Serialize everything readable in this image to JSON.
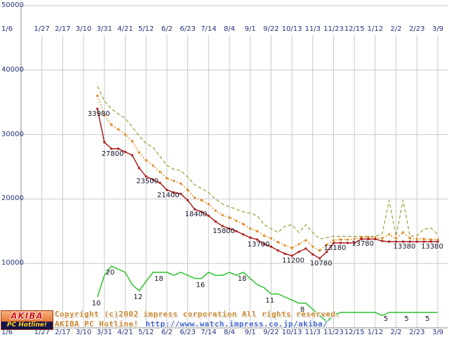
{
  "chart_data": {
    "type": "line",
    "title": "",
    "xlabel": "",
    "ylabel": "",
    "ylim": [
      0,
      50000
    ],
    "grid": true,
    "legend": "none",
    "x_tick_labels": [
      "1/6",
      "1/27",
      "2/17",
      "3/10",
      "3/31",
      "4/21",
      "5/12",
      "6/2",
      "6/23",
      "7/14",
      "8/4",
      "9/1",
      "9/22",
      "10/13",
      "11/3",
      "11/23",
      "12/15",
      "1/12",
      "2/2",
      "2/23",
      "3/9"
    ],
    "x_tick_labels_position": "top-and-bottom",
    "y_tick_labels": [
      "10000",
      "20000",
      "30000",
      "40000",
      "50000"
    ],
    "weeks_per_tick": 3,
    "start_offset_weeks": 11,
    "series": [
      {
        "name": "highest-price",
        "unit": "yen",
        "color": "#9c9c3c",
        "style": "dashed",
        "markers": false,
        "values": [
          37500,
          35200,
          34000,
          33200,
          32500,
          31200,
          29800,
          28600,
          28000,
          26600,
          25200,
          24600,
          24400,
          23400,
          22200,
          21600,
          21000,
          20000,
          19200,
          18800,
          18400,
          18000,
          17800,
          17400,
          16000,
          15400,
          14800,
          15800,
          16000,
          14800,
          16000,
          14800,
          13800,
          14000,
          14200,
          14200,
          14200,
          14200,
          14200,
          14200,
          14200,
          14600,
          19800,
          14200,
          19800,
          14200,
          14300,
          15300,
          15500,
          14500
        ]
      },
      {
        "name": "average-price",
        "unit": "yen",
        "color": "#e08820",
        "style": "dotted",
        "markers": true,
        "values": [
          36000,
          33000,
          31500,
          30800,
          30000,
          29000,
          27200,
          26000,
          25200,
          24200,
          23200,
          22800,
          22400,
          21400,
          20200,
          19800,
          19200,
          18200,
          17500,
          17100,
          16600,
          16100,
          15400,
          15000,
          14300,
          13900,
          13300,
          12800,
          12400,
          13000,
          13600,
          12600,
          12000,
          12900,
          13600,
          13700,
          13700,
          13800,
          14000,
          14100,
          14000,
          13900,
          14500,
          13900,
          14800,
          13900,
          13800,
          13800,
          13700,
          13700
        ]
      },
      {
        "name": "lowest-price",
        "unit": "yen",
        "color": "#aa2020",
        "style": "solid",
        "markers": true,
        "values": [
          33980,
          28800,
          27800,
          27800,
          27300,
          26800,
          24800,
          23500,
          23000,
          22500,
          21400,
          21000,
          20800,
          19800,
          18400,
          18000,
          17400,
          16500,
          15800,
          15400,
          15000,
          14500,
          14000,
          13700,
          13000,
          12600,
          12000,
          11500,
          11200,
          11800,
          12300,
          11400,
          10780,
          11800,
          13180,
          13180,
          13180,
          13180,
          13780,
          13780,
          13780,
          13480,
          13380,
          13380,
          13380,
          13380,
          13380,
          13380,
          13380,
          13380
        ]
      },
      {
        "name": "shops",
        "unit": "count",
        "color": "#2dc22d",
        "style": "solid",
        "markers": false,
        "values": [
          10,
          17,
          20,
          19,
          18,
          14,
          12,
          15,
          18,
          18,
          18,
          17,
          18,
          17,
          16,
          16,
          18,
          17,
          17,
          18,
          17,
          18,
          16,
          14,
          13,
          11,
          11,
          10,
          9,
          8,
          8,
          6,
          4,
          2,
          4,
          5,
          5,
          5,
          5,
          5,
          5,
          4,
          5,
          5,
          5,
          5,
          5,
          5,
          5,
          5
        ]
      }
    ],
    "point_labels": {
      "lowest_price": [
        {
          "week": 0,
          "value": 33980
        },
        {
          "week": 2,
          "value": 27800
        },
        {
          "week": 7,
          "value": 23500
        },
        {
          "week": 10,
          "value": 21400
        },
        {
          "week": 14,
          "value": 18400
        },
        {
          "week": 18,
          "value": 15800
        },
        {
          "week": 23,
          "value": 13700
        },
        {
          "week": 28,
          "value": 11200
        },
        {
          "week": 32,
          "value": 10780
        },
        {
          "week": 34,
          "value": 13180
        },
        {
          "week": 38,
          "value": 13780
        },
        {
          "week": 44,
          "value": 13380
        },
        {
          "week": 48,
          "value": 13380
        }
      ],
      "shops": [
        {
          "week": 0,
          "value": 10
        },
        {
          "week": 2,
          "value": 20
        },
        {
          "week": 6,
          "value": 12
        },
        {
          "week": 9,
          "value": 18
        },
        {
          "week": 15,
          "value": 16
        },
        {
          "week": 21,
          "value": 18
        },
        {
          "week": 25,
          "value": 11
        },
        {
          "week": 30,
          "value": 8
        },
        {
          "week": 42,
          "value": 5
        },
        {
          "week": 45,
          "value": 5
        },
        {
          "week": 48,
          "value": 5
        }
      ]
    }
  },
  "footer": {
    "copyright_line": "Copyright (c)2002 impress corporation All rights reserved.",
    "brand_line": "AKIBA PC Hotline!",
    "url": "http://www.watch.impress.co.jp/akiba/",
    "text_color": "#c8862e",
    "url_color": "#4466cc"
  },
  "logo": {
    "top_text": "AKIBA",
    "bottom_text": "PC Hotline!"
  },
  "colors": {
    "grid": "#c9c9c9",
    "axis": "#8a8a8a",
    "axis_text": "#23337a"
  }
}
